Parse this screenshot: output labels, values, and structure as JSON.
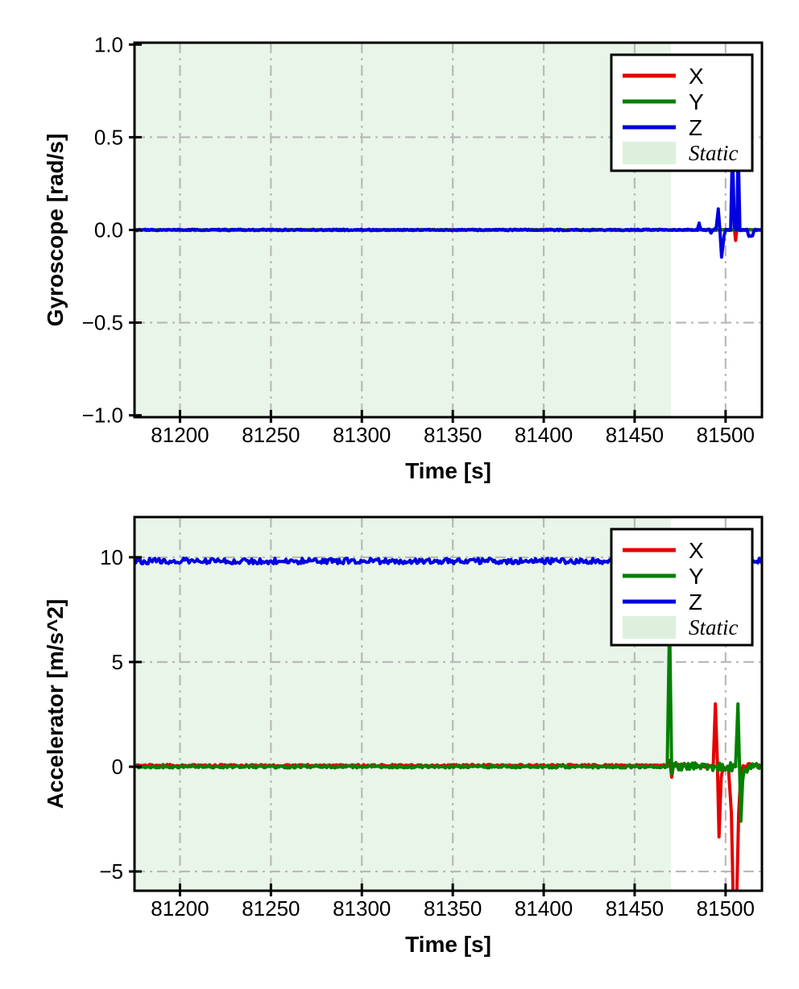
{
  "figure": {
    "background": "#ffffff",
    "description": "Two stacked IMU time-series plots: gyroscope and accelerometer, axes X/Y/Z, with shaded Static interval"
  },
  "colors": {
    "x_series": "#e60000",
    "y_series": "#008000",
    "z_series": "#0000e0",
    "static_region": "#e8f5e8",
    "static_legend_patch": "#ddf0dd",
    "grid": "#b9b9b9",
    "axis": "#000000",
    "legend_background": "#ffffff"
  },
  "chart_data": [
    {
      "type": "line",
      "title": "",
      "xlabel": "Time [s]",
      "ylabel": "Gyroscope [rad/s]",
      "xlim": [
        81175,
        81520
      ],
      "ylim": [
        -1.01,
        1.01
      ],
      "xticks": [
        81200,
        81250,
        81300,
        81350,
        81400,
        81450,
        81500
      ],
      "xtick_labels": [
        "81200",
        "81250",
        "81300",
        "81350",
        "81400",
        "81450",
        "81500"
      ],
      "yticks": [
        1.0,
        0.5,
        0.0,
        -0.5,
        -1.0
      ],
      "ytick_labels": [
        "1.0",
        "0.5",
        "0.0",
        "−0.5",
        "−1.0"
      ],
      "grid": {
        "on": true,
        "style": "dash-dot"
      },
      "legend": {
        "position": "upper right",
        "entries": [
          {
            "label": "X",
            "type": "line",
            "color": "#e60000"
          },
          {
            "label": "Y",
            "type": "line",
            "color": "#008000"
          },
          {
            "label": "Z",
            "type": "line",
            "color": "#0000e0"
          },
          {
            "label": "Static",
            "type": "patch",
            "color": "#ddf0dd",
            "italic": true
          }
        ]
      },
      "regions": [
        {
          "label": "Static",
          "from": 81175,
          "to": 81470,
          "color": "#e8f5e8"
        }
      ],
      "series": [
        {
          "name": "X",
          "color": "#e60000",
          "seed": 11,
          "noise": [
            [
              81175,
              81520,
              0.003
            ]
          ],
          "keypoints": [
            [
              81175,
              0
            ],
            [
              81504.9,
              0
            ],
            [
              81505.5,
              -0.055
            ],
            [
              81506.2,
              0
            ],
            [
              81520,
              0
            ]
          ]
        },
        {
          "name": "Y",
          "color": "#008000",
          "seed": 22,
          "noise": [
            [
              81175,
              81520,
              0.003
            ]
          ],
          "keypoints": [
            [
              81175,
              0
            ],
            [
              81505.0,
              0
            ],
            [
              81505.6,
              0.03
            ],
            [
              81506.3,
              0
            ],
            [
              81520,
              0
            ]
          ]
        },
        {
          "name": "Z",
          "color": "#0000e0",
          "seed": 33,
          "noise": [
            [
              81175,
              81520,
              0.004
            ]
          ],
          "keypoints": [
            [
              81175,
              0
            ],
            [
              81484.5,
              0
            ],
            [
              81485.5,
              0.035
            ],
            [
              81486.5,
              0
            ],
            [
              81491,
              0
            ],
            [
              81492,
              -0.02
            ],
            [
              81493,
              0
            ],
            [
              81494.8,
              0.01
            ],
            [
              81496,
              0.11
            ],
            [
              81496.9,
              0
            ],
            [
              81497.8,
              -0.145
            ],
            [
              81499.2,
              -0.03
            ],
            [
              81500.2,
              0
            ],
            [
              81502.8,
              0
            ],
            [
              81503.8,
              0.45
            ],
            [
              81504.8,
              0.01
            ],
            [
              81505.9,
              0
            ],
            [
              81506.2,
              0
            ],
            [
              81506.9,
              0.45
            ],
            [
              81507.9,
              0
            ],
            [
              81511.8,
              0
            ],
            [
              81512.8,
              -0.035
            ],
            [
              81514.8,
              -0.03
            ],
            [
              81515.8,
              0
            ],
            [
              81520,
              0
            ]
          ]
        }
      ]
    },
    {
      "type": "line",
      "title": "",
      "xlabel": "Time [s]",
      "ylabel": "Accelerator [m/s^2]",
      "xlim": [
        81175,
        81520
      ],
      "ylim": [
        -5.92,
        11.92
      ],
      "xticks": [
        81200,
        81250,
        81300,
        81350,
        81400,
        81450,
        81500
      ],
      "xtick_labels": [
        "81200",
        "81250",
        "81300",
        "81350",
        "81400",
        "81450",
        "81500"
      ],
      "yticks": [
        10,
        5,
        0,
        -5
      ],
      "ytick_labels": [
        "10",
        "5",
        "0",
        "−5"
      ],
      "grid": {
        "on": true,
        "style": "dash-dot"
      },
      "legend": {
        "position": "upper right",
        "entries": [
          {
            "label": "X",
            "type": "line",
            "color": "#e60000"
          },
          {
            "label": "Y",
            "type": "line",
            "color": "#008000"
          },
          {
            "label": "Z",
            "type": "line",
            "color": "#0000e0"
          },
          {
            "label": "Static",
            "type": "patch",
            "color": "#ddf0dd",
            "italic": true
          }
        ]
      },
      "regions": [
        {
          "label": "Static",
          "from": 81175,
          "to": 81470,
          "color": "#e8f5e8"
        }
      ],
      "series": [
        {
          "name": "X",
          "color": "#e60000",
          "seed": 44,
          "noise": [
            [
              81175,
              81466,
              0.05
            ],
            [
              81471.2,
              81493,
              0.07
            ],
            [
              81509.8,
              81520,
              0.1
            ]
          ],
          "keypoints": [
            [
              81175,
              0.06
            ],
            [
              81468,
              0.06
            ],
            [
              81469.3,
              0.3
            ],
            [
              81470.4,
              -0.5
            ],
            [
              81471.2,
              0.06
            ],
            [
              81493.2,
              0.05
            ],
            [
              81494.4,
              3.0
            ],
            [
              81495.5,
              0.15
            ],
            [
              81496.4,
              -3.35
            ],
            [
              81497.6,
              -0.5
            ],
            [
              81498.6,
              -0.05
            ],
            [
              81501.6,
              -0.1
            ],
            [
              81503.2,
              -2.2
            ],
            [
              81504.2,
              -6.4
            ],
            [
              81506.1,
              -6.4
            ],
            [
              81507.2,
              -2.2
            ],
            [
              81508.4,
              -0.35
            ],
            [
              81509.6,
              0.05
            ],
            [
              81520,
              0.05
            ]
          ]
        },
        {
          "name": "Y",
          "color": "#008000",
          "seed": 55,
          "noise": [
            [
              81175,
              81467,
              0.06
            ],
            [
              81471.4,
              81505.4,
              0.2
            ],
            [
              81510.4,
              81520,
              0.2
            ]
          ],
          "keypoints": [
            [
              81175,
              0
            ],
            [
              81467.9,
              0
            ],
            [
              81469.2,
              7.0
            ],
            [
              81470.4,
              -0.35
            ],
            [
              81471.3,
              0
            ],
            [
              81505.5,
              0
            ],
            [
              81506.8,
              3.0
            ],
            [
              81507.6,
              0.25
            ],
            [
              81508.4,
              -2.6
            ],
            [
              81509.4,
              -0.65
            ],
            [
              81510.3,
              -0.1
            ],
            [
              81520,
              0
            ]
          ]
        },
        {
          "name": "Z",
          "color": "#0000e0",
          "seed": 66,
          "noise": [
            [
              81175,
              81520,
              0.13
            ]
          ],
          "keypoints": [
            [
              81175,
              9.82
            ],
            [
              81520,
              9.82
            ]
          ]
        }
      ]
    }
  ]
}
